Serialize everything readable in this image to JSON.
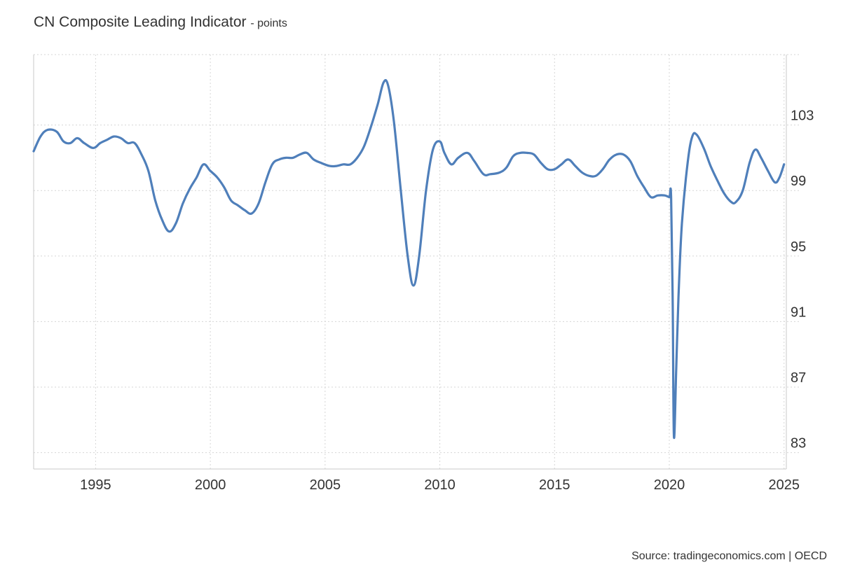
{
  "title": "CN Composite Leading Indicator",
  "unit_label": "points",
  "source": "Source: tradingeconomics.com | OECD",
  "colors": {
    "line": "#4f7fba",
    "grid": "#d6d6d6",
    "axis": "#c8c8c8"
  },
  "chart_data": {
    "type": "line",
    "title": "CN Composite Leading Indicator",
    "unit": "points",
    "xlim": [
      1992.3,
      2025.1
    ],
    "ylim": [
      82,
      107.3
    ],
    "y_ticks": [
      83,
      87,
      91,
      95,
      99,
      103
    ],
    "x_ticks": [
      1995,
      2000,
      2005,
      2010,
      2015,
      2020,
      2025
    ],
    "y_axis_position": "right",
    "grid": true,
    "series": [
      {
        "name": "",
        "points": [
          [
            1992.3,
            101.4
          ],
          [
            1992.6,
            102.3
          ],
          [
            1992.9,
            102.7
          ],
          [
            1993.3,
            102.6
          ],
          [
            1993.6,
            102.0
          ],
          [
            1993.9,
            101.9
          ],
          [
            1994.2,
            102.2
          ],
          [
            1994.5,
            101.9
          ],
          [
            1994.9,
            101.6
          ],
          [
            1995.2,
            101.9
          ],
          [
            1995.5,
            102.1
          ],
          [
            1995.8,
            102.3
          ],
          [
            1996.1,
            102.2
          ],
          [
            1996.4,
            101.9
          ],
          [
            1996.7,
            101.9
          ],
          [
            1997.0,
            101.2
          ],
          [
            1997.3,
            100.2
          ],
          [
            1997.6,
            98.4
          ],
          [
            1997.9,
            97.2
          ],
          [
            1998.2,
            96.5
          ],
          [
            1998.5,
            97.0
          ],
          [
            1998.8,
            98.2
          ],
          [
            1999.1,
            99.1
          ],
          [
            1999.4,
            99.8
          ],
          [
            1999.7,
            100.6
          ],
          [
            2000.0,
            100.2
          ],
          [
            2000.3,
            99.8
          ],
          [
            2000.6,
            99.2
          ],
          [
            2000.9,
            98.4
          ],
          [
            2001.2,
            98.1
          ],
          [
            2001.5,
            97.8
          ],
          [
            2001.8,
            97.6
          ],
          [
            2002.1,
            98.2
          ],
          [
            2002.4,
            99.5
          ],
          [
            2002.7,
            100.6
          ],
          [
            2003.0,
            100.9
          ],
          [
            2003.3,
            101.0
          ],
          [
            2003.6,
            101.0
          ],
          [
            2003.9,
            101.2
          ],
          [
            2004.2,
            101.3
          ],
          [
            2004.5,
            100.9
          ],
          [
            2004.8,
            100.7
          ],
          [
            2005.2,
            100.5
          ],
          [
            2005.5,
            100.5
          ],
          [
            2005.8,
            100.6
          ],
          [
            2006.1,
            100.6
          ],
          [
            2006.4,
            101.0
          ],
          [
            2006.7,
            101.7
          ],
          [
            2007.0,
            102.9
          ],
          [
            2007.3,
            104.3
          ],
          [
            2007.55,
            105.6
          ],
          [
            2007.75,
            105.4
          ],
          [
            2008.0,
            103.2
          ],
          [
            2008.3,
            99.0
          ],
          [
            2008.6,
            95.0
          ],
          [
            2008.85,
            93.2
          ],
          [
            2009.1,
            95.0
          ],
          [
            2009.4,
            99.0
          ],
          [
            2009.7,
            101.5
          ],
          [
            2010.0,
            102.0
          ],
          [
            2010.2,
            101.3
          ],
          [
            2010.5,
            100.6
          ],
          [
            2010.8,
            101.0
          ],
          [
            2011.2,
            101.3
          ],
          [
            2011.5,
            100.8
          ],
          [
            2011.9,
            100.0
          ],
          [
            2012.2,
            100.0
          ],
          [
            2012.6,
            100.1
          ],
          [
            2012.9,
            100.4
          ],
          [
            2013.2,
            101.1
          ],
          [
            2013.5,
            101.3
          ],
          [
            2013.8,
            101.3
          ],
          [
            2014.1,
            101.2
          ],
          [
            2014.4,
            100.7
          ],
          [
            2014.7,
            100.3
          ],
          [
            2015.0,
            100.3
          ],
          [
            2015.3,
            100.6
          ],
          [
            2015.6,
            100.9
          ],
          [
            2015.9,
            100.5
          ],
          [
            2016.2,
            100.1
          ],
          [
            2016.5,
            99.9
          ],
          [
            2016.8,
            99.9
          ],
          [
            2017.1,
            100.3
          ],
          [
            2017.4,
            100.9
          ],
          [
            2017.7,
            101.2
          ],
          [
            2018.0,
            101.2
          ],
          [
            2018.3,
            100.8
          ],
          [
            2018.6,
            99.9
          ],
          [
            2018.9,
            99.2
          ],
          [
            2019.2,
            98.6
          ],
          [
            2019.5,
            98.7
          ],
          [
            2019.8,
            98.7
          ],
          [
            2020.0,
            98.6
          ],
          [
            2020.08,
            98.6
          ],
          [
            2020.15,
            92.0
          ],
          [
            2020.2,
            84.0
          ],
          [
            2020.3,
            88.0
          ],
          [
            2020.4,
            92.5
          ],
          [
            2020.55,
            97.0
          ],
          [
            2020.8,
            100.7
          ],
          [
            2021.0,
            102.3
          ],
          [
            2021.2,
            102.4
          ],
          [
            2021.5,
            101.6
          ],
          [
            2021.8,
            100.5
          ],
          [
            2022.1,
            99.6
          ],
          [
            2022.4,
            98.8
          ],
          [
            2022.7,
            98.3
          ],
          [
            2022.9,
            98.3
          ],
          [
            2023.2,
            99.0
          ],
          [
            2023.5,
            100.7
          ],
          [
            2023.75,
            101.5
          ],
          [
            2024.0,
            101.0
          ],
          [
            2024.3,
            100.2
          ],
          [
            2024.6,
            99.5
          ],
          [
            2024.8,
            99.8
          ],
          [
            2025.0,
            100.6
          ]
        ]
      }
    ]
  }
}
